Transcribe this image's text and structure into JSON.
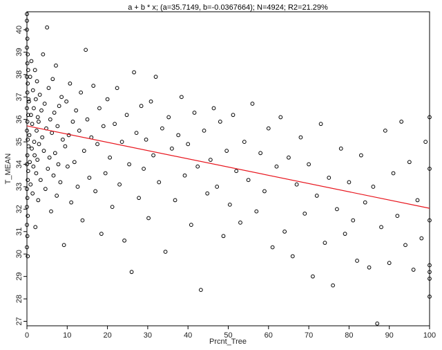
{
  "chart_data": {
    "type": "scatter",
    "title": "a + b * x; (a=35.7149, b=-0.0367664); N=4924; R2=21.29%",
    "xlabel": "Prcnt_Tree",
    "ylabel": "T_MEAN",
    "xlim": [
      0,
      100
    ],
    "ylim": [
      26.8,
      40.8
    ],
    "xticks": [
      "0",
      "10",
      "20",
      "30",
      "40",
      "50",
      "60",
      "70",
      "80",
      "90",
      "100"
    ],
    "yticks": [
      "27",
      "28",
      "29",
      "30",
      "31",
      "32",
      "33",
      "34",
      "35",
      "36",
      "37",
      "38",
      "39",
      "40"
    ],
    "grid": false,
    "fit": {
      "a": 35.7149,
      "b": -0.0367664,
      "color": "#e8141c"
    },
    "point_color": "#000000",
    "points": [
      [
        0.0,
        40.7
      ],
      [
        0.0,
        40.4
      ],
      [
        0.0,
        40.0
      ],
      [
        0.1,
        39.6
      ],
      [
        0.0,
        39.2
      ],
      [
        0.2,
        38.9
      ],
      [
        0.1,
        38.5
      ],
      [
        0.3,
        38.2
      ],
      [
        0.0,
        37.9
      ],
      [
        0.2,
        37.6
      ],
      [
        0.1,
        37.2
      ],
      [
        0.4,
        36.9
      ],
      [
        0.0,
        36.5
      ],
      [
        0.3,
        36.2
      ],
      [
        0.1,
        35.9
      ],
      [
        0.0,
        35.5
      ],
      [
        0.2,
        35.1
      ],
      [
        0.4,
        34.8
      ],
      [
        0.1,
        34.4
      ],
      [
        0.0,
        34.0
      ],
      [
        0.3,
        33.7
      ],
      [
        0.2,
        33.3
      ],
      [
        0.0,
        32.9
      ],
      [
        0.1,
        32.5
      ],
      [
        0.0,
        32.1
      ],
      [
        0.2,
        31.7
      ],
      [
        0.0,
        31.3
      ],
      [
        0.1,
        30.8
      ],
      [
        0.0,
        30.3
      ],
      [
        0.2,
        29.9
      ],
      [
        0.5,
        36.8
      ],
      [
        0.6,
        35.3
      ],
      [
        0.7,
        34.1
      ],
      [
        0.8,
        37.9
      ],
      [
        0.9,
        33.1
      ],
      [
        1.0,
        36.2
      ],
      [
        1.1,
        38.6
      ],
      [
        1.2,
        34.7
      ],
      [
        1.3,
        35.8
      ],
      [
        1.4,
        32.7
      ],
      [
        1.5,
        37.3
      ],
      [
        1.6,
        33.9
      ],
      [
        1.7,
        36.5
      ],
      [
        1.8,
        35.0
      ],
      [
        1.9,
        34.4
      ],
      [
        2.0,
        38.2
      ],
      [
        2.1,
        31.2
      ],
      [
        2.2,
        36.9
      ],
      [
        2.3,
        33.6
      ],
      [
        2.4,
        35.5
      ],
      [
        2.5,
        37.7
      ],
      [
        2.6,
        34.2
      ],
      [
        2.7,
        36.1
      ],
      [
        2.8,
        32.4
      ],
      [
        2.9,
        35.9
      ],
      [
        3.0,
        34.9
      ],
      [
        3.2,
        37.1
      ],
      [
        3.4,
        33.3
      ],
      [
        3.6,
        36.4
      ],
      [
        3.8,
        35.2
      ],
      [
        4.0,
        38.9
      ],
      [
        4.2,
        34.6
      ],
      [
        4.4,
        36.7
      ],
      [
        4.6,
        32.9
      ],
      [
        4.8,
        35.6
      ],
      [
        5.0,
        40.1
      ],
      [
        5.2,
        33.8
      ],
      [
        5.4,
        37.4
      ],
      [
        5.6,
        34.3
      ],
      [
        5.8,
        36.0
      ],
      [
        6.0,
        31.9
      ],
      [
        6.2,
        35.4
      ],
      [
        6.4,
        37.8
      ],
      [
        6.6,
        33.5
      ],
      [
        6.8,
        36.3
      ],
      [
        7.0,
        34.5
      ],
      [
        7.2,
        38.4
      ],
      [
        7.4,
        32.6
      ],
      [
        7.6,
        35.7
      ],
      [
        7.8,
        34.0
      ],
      [
        8.0,
        36.6
      ],
      [
        8.3,
        33.2
      ],
      [
        8.6,
        37.0
      ],
      [
        8.9,
        35.1
      ],
      [
        9.2,
        30.4
      ],
      [
        9.5,
        34.8
      ],
      [
        9.8,
        36.8
      ],
      [
        10.1,
        33.9
      ],
      [
        10.4,
        35.3
      ],
      [
        10.7,
        37.6
      ],
      [
        11.0,
        32.3
      ],
      [
        11.4,
        35.9
      ],
      [
        11.8,
        34.1
      ],
      [
        12.2,
        36.4
      ],
      [
        12.6,
        33.0
      ],
      [
        13.0,
        35.5
      ],
      [
        13.4,
        37.2
      ],
      [
        13.8,
        31.5
      ],
      [
        14.2,
        34.6
      ],
      [
        14.6,
        39.1
      ],
      [
        15.0,
        36.0
      ],
      [
        15.5,
        33.4
      ],
      [
        16.0,
        35.2
      ],
      [
        16.5,
        37.5
      ],
      [
        17.0,
        32.8
      ],
      [
        17.5,
        34.9
      ],
      [
        18.0,
        36.5
      ],
      [
        18.5,
        30.9
      ],
      [
        19.0,
        35.7
      ],
      [
        19.5,
        33.6
      ],
      [
        20.0,
        36.9
      ],
      [
        20.6,
        34.3
      ],
      [
        21.2,
        32.1
      ],
      [
        21.8,
        35.8
      ],
      [
        22.4,
        37.4
      ],
      [
        23.0,
        33.1
      ],
      [
        23.6,
        35.0
      ],
      [
        24.2,
        30.6
      ],
      [
        24.8,
        36.2
      ],
      [
        25.4,
        34.0
      ],
      [
        26.0,
        29.2
      ],
      [
        26.6,
        38.1
      ],
      [
        27.2,
        35.4
      ],
      [
        27.8,
        32.5
      ],
      [
        28.4,
        36.6
      ],
      [
        29.0,
        33.8
      ],
      [
        29.6,
        35.1
      ],
      [
        30.2,
        31.6
      ],
      [
        30.8,
        36.8
      ],
      [
        31.4,
        34.4
      ],
      [
        32.0,
        37.9
      ],
      [
        32.8,
        33.2
      ],
      [
        33.6,
        35.6
      ],
      [
        34.4,
        30.1
      ],
      [
        35.2,
        36.1
      ],
      [
        36.0,
        34.7
      ],
      [
        36.8,
        32.4
      ],
      [
        37.6,
        35.3
      ],
      [
        38.4,
        37.0
      ],
      [
        39.2,
        33.5
      ],
      [
        40.0,
        34.9
      ],
      [
        40.8,
        31.3
      ],
      [
        41.6,
        36.3
      ],
      [
        42.4,
        33.9
      ],
      [
        43.2,
        28.4
      ],
      [
        44.0,
        35.5
      ],
      [
        44.8,
        32.7
      ],
      [
        45.6,
        34.2
      ],
      [
        46.4,
        36.5
      ],
      [
        47.2,
        33.0
      ],
      [
        48.0,
        35.9
      ],
      [
        48.8,
        30.8
      ],
      [
        49.6,
        34.6
      ],
      [
        50.4,
        32.2
      ],
      [
        51.2,
        36.2
      ],
      [
        52.0,
        33.7
      ],
      [
        53.0,
        31.4
      ],
      [
        54.0,
        35.0
      ],
      [
        55.0,
        33.3
      ],
      [
        56.0,
        36.7
      ],
      [
        57.0,
        31.9
      ],
      [
        58.0,
        34.5
      ],
      [
        59.0,
        32.8
      ],
      [
        60.0,
        35.6
      ],
      [
        61.0,
        30.3
      ],
      [
        62.0,
        33.9
      ],
      [
        63.0,
        36.1
      ],
      [
        64.0,
        31.0
      ],
      [
        65.0,
        34.3
      ],
      [
        66.0,
        29.9
      ],
      [
        67.0,
        33.1
      ],
      [
        68.0,
        35.2
      ],
      [
        69.0,
        31.8
      ],
      [
        70.0,
        34.0
      ],
      [
        71.0,
        29.0
      ],
      [
        72.0,
        32.6
      ],
      [
        73.0,
        35.8
      ],
      [
        74.0,
        30.5
      ],
      [
        75.0,
        33.4
      ],
      [
        76.0,
        28.6
      ],
      [
        77.0,
        32.0
      ],
      [
        78.0,
        34.7
      ],
      [
        79.0,
        30.9
      ],
      [
        80.0,
        33.2
      ],
      [
        81.0,
        31.5
      ],
      [
        82.0,
        29.7
      ],
      [
        83.0,
        34.4
      ],
      [
        84.0,
        32.3
      ],
      [
        85.0,
        29.4
      ],
      [
        86.0,
        33.0
      ],
      [
        87.0,
        26.9
      ],
      [
        88.0,
        31.2
      ],
      [
        89.0,
        35.5
      ],
      [
        90.0,
        29.6
      ],
      [
        91.0,
        33.6
      ],
      [
        92.0,
        31.7
      ],
      [
        93.0,
        35.9
      ],
      [
        94.0,
        30.4
      ],
      [
        95.0,
        34.1
      ],
      [
        96.0,
        29.3
      ],
      [
        97.0,
        32.4
      ],
      [
        98.0,
        30.7
      ],
      [
        99.0,
        35.0
      ],
      [
        100.0,
        33.8
      ],
      [
        100.0,
        31.5
      ],
      [
        100.0,
        29.5
      ],
      [
        100.0,
        28.9
      ],
      [
        100.0,
        28.1
      ],
      [
        100.0,
        36.1
      ],
      [
        100.0,
        29.2
      ]
    ]
  }
}
